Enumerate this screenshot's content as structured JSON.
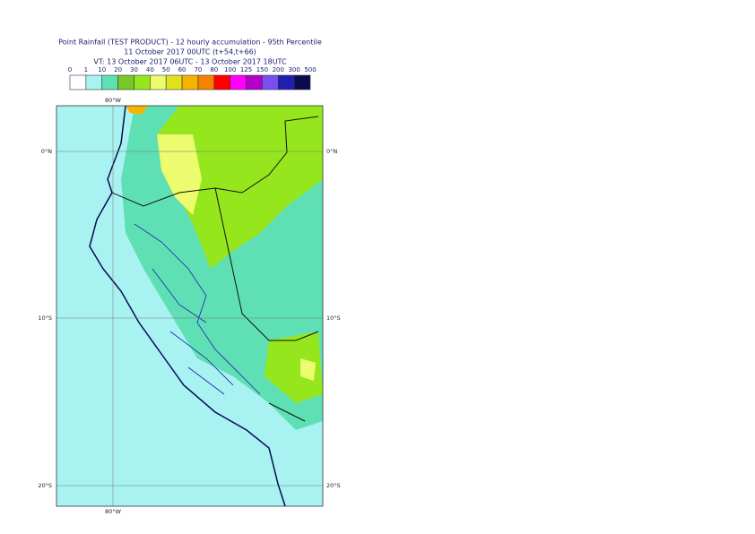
{
  "header": {
    "title": "Point Rainfall (TEST PRODUCT) - 12 hourly accumulation - 95th Percentile",
    "base_time": "11 October 2017 00UTC (t+54,t+66)",
    "valid_time": "VT: 13 October 2017 06UTC - 13 October 2017 18UTC"
  },
  "legend": {
    "levels": [
      0,
      1,
      10,
      20,
      30,
      40,
      50,
      60,
      70,
      80,
      100,
      125,
      150,
      200,
      300,
      500
    ],
    "colors": [
      "#ffffff",
      "#a8f2f2",
      "#5fe0b4",
      "#78c828",
      "#96e61e",
      "#ecfc6e",
      "#e1e11e",
      "#f5b400",
      "#f58200",
      "#ff0000",
      "#ff00ff",
      "#b400c8",
      "#7850f0",
      "#1e1eb4",
      "#0a0a50"
    ]
  },
  "map": {
    "lat_labels": [
      "0°N",
      "10°S",
      "20°S"
    ],
    "lon_labels": [
      "80°W"
    ]
  }
}
